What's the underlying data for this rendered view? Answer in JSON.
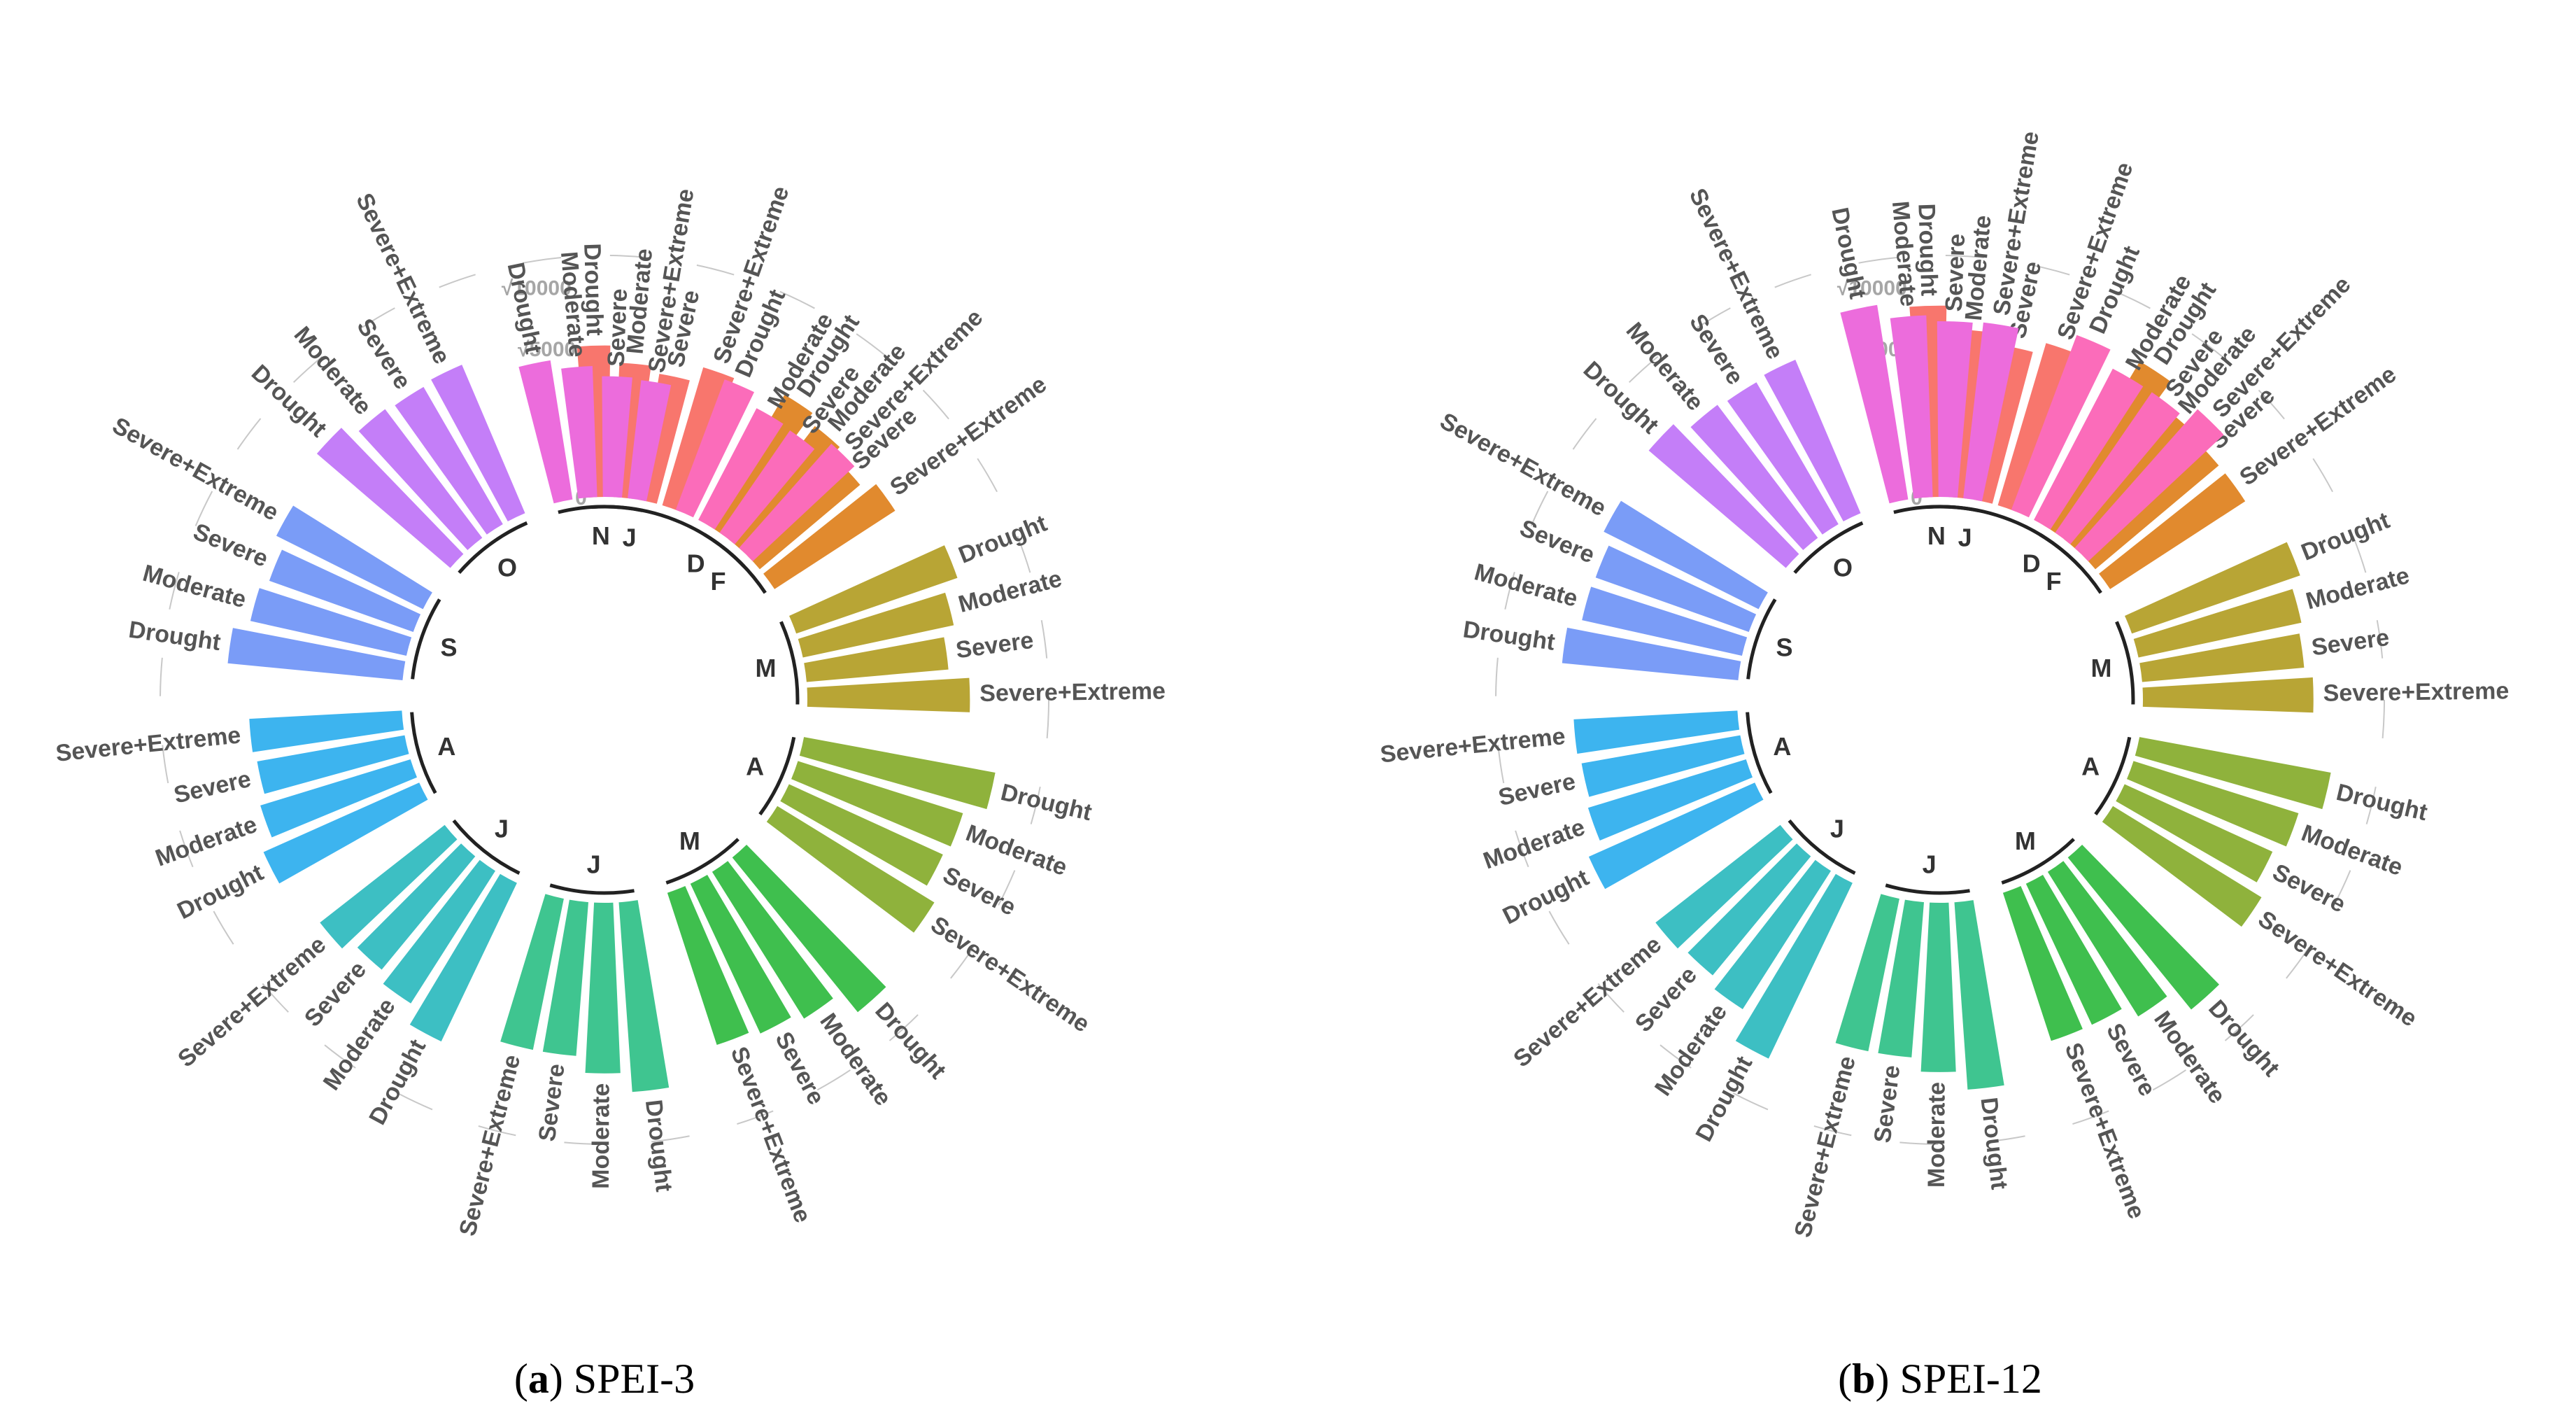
{
  "chart_data": [
    {
      "type": "circular-bar",
      "panel": "a",
      "caption_letter": "a",
      "caption_text": "SPEI-3",
      "radial_axis": {
        "ticks": [
          0,
          5000,
          10000
        ],
        "tick_labels": [
          "0",
          "√5000",
          "√10000"
        ],
        "scale": "sqrt"
      },
      "categories": [
        "Drought",
        "Moderate",
        "Severe",
        "Severe+Extreme"
      ],
      "months": [
        {
          "label": "J",
          "color": "#f8766d",
          "values": [
            5200,
            4100,
            3700,
            4700
          ]
        },
        {
          "label": "F",
          "color": "#e18a2e",
          "values": [
            5200,
            4600,
            3900,
            4700
          ]
        },
        {
          "label": "M",
          "color": "#b8a535",
          "values": [
            6600,
            5400,
            4600,
            6000
          ]
        },
        {
          "label": "A",
          "color": "#8fb23c",
          "values": [
            8600,
            6800,
            6500,
            7700
          ]
        },
        {
          "label": "M",
          "color": "#3fbf4e",
          "values": [
            9000,
            6800,
            6200,
            5800
          ]
        },
        {
          "label": "J",
          "color": "#3fc590",
          "values": [
            8200,
            6600,
            5400,
            5400
          ]
        },
        {
          "label": "J",
          "color": "#3dbfc3",
          "values": [
            7000,
            5600,
            4900,
            5700
          ]
        },
        {
          "label": "A",
          "color": "#3db4ef",
          "values": [
            6600,
            5600,
            5100,
            5300
          ]
        },
        {
          "label": "S",
          "color": "#7a9cf7",
          "values": [
            7000,
            5800,
            5300,
            6100
          ]
        },
        {
          "label": "O",
          "color": "#c47ef8",
          "values": [
            7000,
            5900,
            5700,
            5900
          ]
        },
        {
          "label": "N",
          "color": "#ec6cdc",
          "values": [
            4500,
            3900,
            3300,
            3200
          ]
        },
        {
          "label": "D",
          "color": "#fb6cba",
          "values": [
            4400,
            3600,
            3500,
            4400
          ]
        }
      ]
    },
    {
      "type": "circular-bar",
      "panel": "b",
      "caption_letter": "b",
      "caption_text": "SPEI-12",
      "radial_axis": {
        "ticks": [
          0,
          5000,
          10000
        ],
        "tick_labels": [
          "0",
          "√5000",
          "√10000"
        ],
        "scale": "sqrt"
      },
      "categories": [
        "Drought",
        "Moderate",
        "Severe",
        "Severe+Extreme"
      ],
      "months": [
        {
          "label": "J",
          "color": "#f8766d",
          "values": [
            8300,
            6400,
            5600,
            6500
          ]
        },
        {
          "label": "F",
          "color": "#e18a2e",
          "values": [
            8200,
            6200,
            5900,
            5900
          ]
        },
        {
          "label": "M",
          "color": "#b8a535",
          "values": [
            7200,
            6300,
            6000,
            6600
          ]
        },
        {
          "label": "A",
          "color": "#8fb23c",
          "values": [
            8600,
            6800,
            6000,
            6900
          ]
        },
        {
          "label": "M",
          "color": "#3fbf4e",
          "values": [
            8700,
            6600,
            5500,
            5500
          ]
        },
        {
          "label": "J",
          "color": "#3fc590",
          "values": [
            8000,
            6500,
            5500,
            5500
          ]
        },
        {
          "label": "J",
          "color": "#3dbfc3",
          "values": [
            8600,
            6100,
            5400,
            5700
          ]
        },
        {
          "label": "A",
          "color": "#3db4ef",
          "values": [
            7500,
            6200,
            5900,
            6100
          ]
        },
        {
          "label": "S",
          "color": "#7a9cf7",
          "values": [
            7100,
            6100,
            6000,
            6800
          ]
        },
        {
          "label": "O",
          "color": "#c47ef8",
          "values": [
            7400,
            6300,
            6100,
            6300
          ]
        },
        {
          "label": "N",
          "color": "#ec6cdc",
          "values": [
            8800,
            7500,
            7000,
            7100
          ]
        },
        {
          "label": "D",
          "color": "#fb6cba",
          "values": [
            7900,
            6600,
            6600,
            7800
          ]
        }
      ]
    }
  ]
}
